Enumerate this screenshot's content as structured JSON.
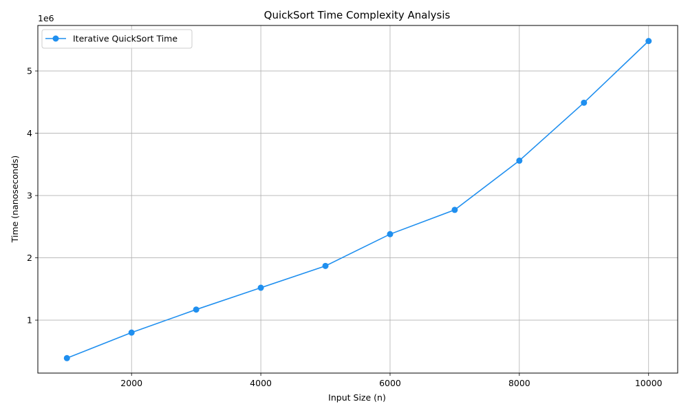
{
  "chart_data": {
    "type": "line",
    "title": "QuickSort Time Complexity Analysis",
    "xlabel": "Input Size (n)",
    "ylabel": "Time (nanoseconds)",
    "y_offset_label": "1e6",
    "xlim": [
      550,
      10450
    ],
    "ylim": [
      0.15,
      5.73
    ],
    "x_ticks": [
      2000,
      4000,
      6000,
      8000,
      10000
    ],
    "y_ticks": [
      1,
      2,
      3,
      4,
      5
    ],
    "grid": true,
    "legend_position": "top-left",
    "series": [
      {
        "name": "Iterative QuickSort Time",
        "color": "#1f8fef",
        "x": [
          1000,
          2000,
          3000,
          4000,
          5000,
          6000,
          7000,
          8000,
          9000,
          10000
        ],
        "y": [
          0.39,
          0.8,
          1.17,
          1.52,
          1.87,
          2.38,
          2.77,
          3.56,
          4.49,
          5.48
        ]
      }
    ]
  }
}
